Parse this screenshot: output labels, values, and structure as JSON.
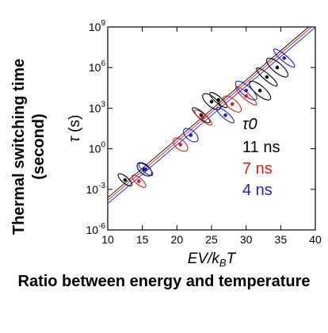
{
  "y_side_title": "Thermal switching time (second)",
  "x_side_title": "Ratio between energy and temperature",
  "chart_data": {
    "type": "scatter",
    "xlabel": "EV/kBT",
    "ylabel": "τ (s)",
    "xlim": [
      10,
      40
    ],
    "ylim_log10": [
      -6,
      9
    ],
    "x_ticks": [
      "10",
      "15",
      "20",
      "25",
      "30",
      "35",
      "40"
    ],
    "y_ticks": [
      "10^-6",
      "10^-3",
      "10^0",
      "10^3",
      "10^6",
      "10^9"
    ],
    "legend_title": "τ0",
    "legend_placement": "right",
    "series": [
      {
        "name": "11 ns",
        "color": "#000000",
        "points": [
          [
            12.5,
            0.005
          ],
          [
            15.3,
            0.03
          ],
          [
            23.5,
            300
          ],
          [
            25,
            3000
          ],
          [
            26,
            4000
          ],
          [
            32,
            20000
          ],
          [
            33,
            200000
          ],
          [
            34.5,
            1000000
          ]
        ],
        "fit_tau0_s": 1.1e-08
      },
      {
        "name": "7 ns",
        "color": "#dd1c1c",
        "points": [
          [
            14.5,
            0.004
          ],
          [
            20.5,
            2
          ],
          [
            23.8,
            200
          ],
          [
            28,
            2000
          ],
          [
            30,
            8000
          ]
        ],
        "fit_tau0_s": 7e-09
      },
      {
        "name": "4 ns",
        "color": "#1c1cdd",
        "points": [
          [
            15.5,
            0.03
          ],
          [
            22,
            10
          ],
          [
            27,
            300
          ],
          [
            30,
            20000
          ],
          [
            35.5,
            5000000
          ]
        ],
        "fit_tau0_s": 4e-09
      }
    ]
  }
}
